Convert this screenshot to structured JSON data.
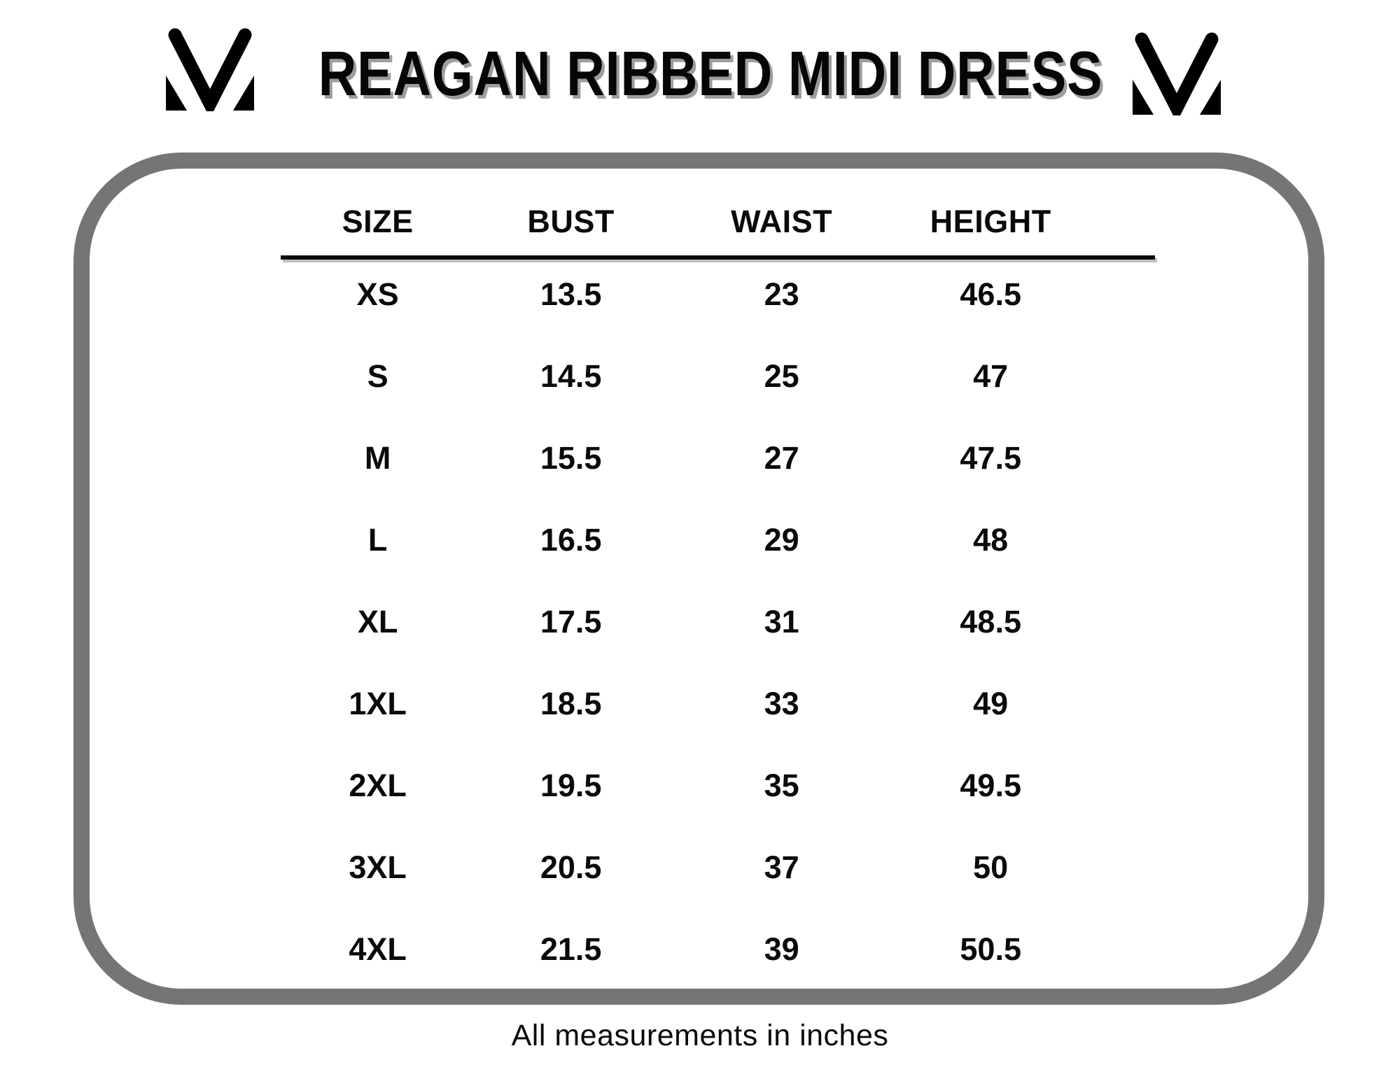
{
  "page": {
    "title": "REAGAN RIBBED MIDI DRESS",
    "footer_note": "All measurements in inches"
  },
  "brand": {
    "logo": "m-monogram"
  },
  "chart_data": {
    "type": "table",
    "title": "REAGAN RIBBED MIDI DRESS",
    "columns": [
      "SIZE",
      "BUST",
      "WAIST",
      "HEIGHT"
    ],
    "rows": [
      [
        "XS",
        13.5,
        23,
        46.5
      ],
      [
        "S",
        14.5,
        25,
        47
      ],
      [
        "M",
        15.5,
        27,
        47.5
      ],
      [
        "L",
        16.5,
        29,
        48
      ],
      [
        "XL",
        17.5,
        31,
        48.5
      ],
      [
        "1XL",
        18.5,
        33,
        49
      ],
      [
        "2XL",
        19.5,
        35,
        49.5
      ],
      [
        "3XL",
        20.5,
        37,
        50
      ],
      [
        "4XL",
        21.5,
        39,
        50.5
      ]
    ],
    "units": "inches",
    "note": "All measurements in inches"
  },
  "colors": {
    "text": "#0a0a0a",
    "title_shadow": "#9d9d9d",
    "frame_border": "#757575",
    "rule_shadow": "#c0c0c0",
    "background": "#ffffff"
  }
}
